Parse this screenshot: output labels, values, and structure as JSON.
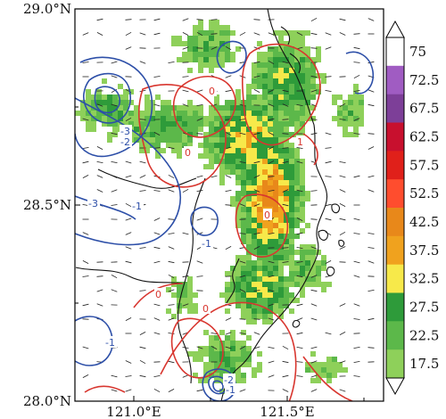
{
  "lat_labels": [
    "29.0°N",
    "28.5°N",
    "28.0°N"
  ],
  "lon_labels": [
    "121.0°E",
    "121.5°E"
  ],
  "colorbar": {
    "labels": [
      "75",
      "72.5",
      "67.5",
      "62.5",
      "57.5",
      "52.5",
      "42.5",
      "37.5",
      "32.5",
      "27.5",
      "22.5",
      "17.5"
    ],
    "colors": [
      "#ffffff",
      "#a05cc2",
      "#7d3f98",
      "#c8102e",
      "#e0201a",
      "#ff4d2e",
      "#e8881a",
      "#f0a21e",
      "#f7e94a",
      "#2e9b3a",
      "#5cb84a",
      "#8ed05a"
    ]
  },
  "contour_labels": {
    "red": [
      "0",
      "0",
      "0",
      "0",
      "0",
      "1"
    ],
    "blue": [
      "-3",
      "-2",
      "-1",
      "-3",
      "-1",
      "-1",
      "-1",
      "-2"
    ]
  },
  "colors": {
    "red_contour": "#d8362f",
    "blue_contour": "#2d4fa8",
    "coast": "#111111",
    "wind": "#222222"
  },
  "chart_data": {
    "type": "heatmap",
    "description": "Radar reflectivity (dBZ) map with red (positive) and blue (negative) contours, coastline and wind barbs",
    "lat_range": [
      28.0,
      29.0
    ],
    "lon_range": [
      120.8,
      121.8
    ],
    "lat_ticks": [
      28.0,
      28.5,
      29.0
    ],
    "lon_ticks": [
      121.0,
      121.5
    ],
    "colorbar_levels": [
      17.5,
      22.5,
      27.5,
      32.5,
      37.5,
      42.5,
      52.5,
      57.5,
      62.5,
      67.5,
      72.5,
      75
    ]
  }
}
